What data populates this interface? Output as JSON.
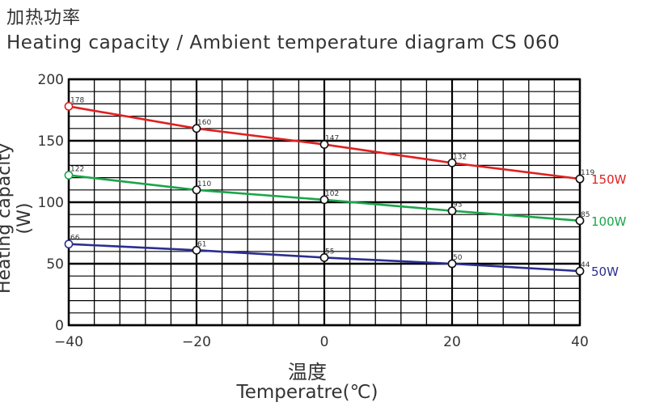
{
  "header": {
    "title_cn": "加热功率",
    "title_en": "Heating capacity / Ambient temperature diagram CS 060"
  },
  "chart_data": {
    "type": "line",
    "xlabel_cn": "温度",
    "xlabel": "Temperatre(℃)",
    "ylabel": "Heating capacity (W)",
    "xlim": [
      -40,
      40
    ],
    "ylim": [
      0,
      200
    ],
    "x_ticks": [
      "−40",
      "−20",
      "0",
      "20",
      "40"
    ],
    "y_ticks": [
      "0",
      "50",
      "100",
      "150",
      "200"
    ],
    "grid": true,
    "x": [
      -40,
      -20,
      0,
      20,
      40
    ],
    "series": [
      {
        "name": "150W",
        "color": "#e02020",
        "values": [
          178,
          160,
          147,
          132,
          119
        ]
      },
      {
        "name": "100W",
        "color": "#1aa54a",
        "values": [
          122,
          110,
          102,
          93,
          85
        ]
      },
      {
        "name": "50W",
        "color": "#2b2e8f",
        "values": [
          66,
          61,
          55,
          50,
          44
        ]
      }
    ]
  }
}
